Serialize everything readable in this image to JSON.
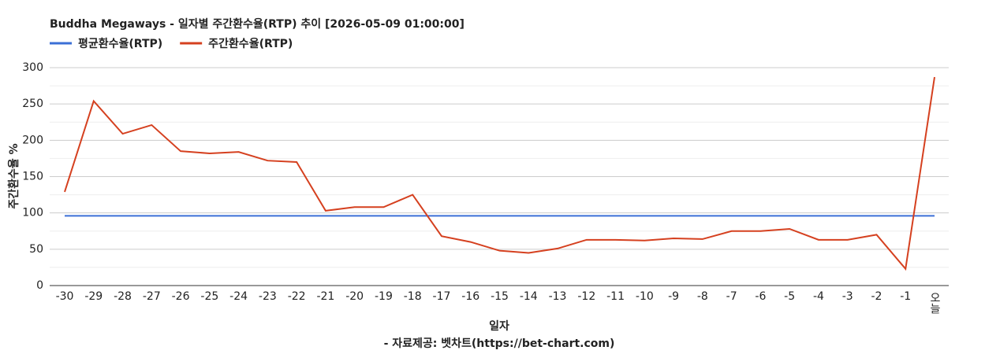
{
  "chart_data": {
    "type": "line",
    "title": "Buddha Megaways - 일자별 주간환수율(RTP) 추이 [2026-05-09 01:00:00]",
    "x_label": "일자",
    "y_label": "주간환수율 %",
    "footer": "- 자료제공: 벳차트(https://bet-chart.com)",
    "categories": [
      "-30",
      "-29",
      "-28",
      "-27",
      "-26",
      "-25",
      "-24",
      "-23",
      "-22",
      "-21",
      "-20",
      "-19",
      "-18",
      "-17",
      "-16",
      "-15",
      "-14",
      "-13",
      "-12",
      "-11",
      "-10",
      "-9",
      "-8",
      "-7",
      "-6",
      "-5",
      "-4",
      "-3",
      "-2",
      "-1",
      "오늘"
    ],
    "series": [
      {
        "name": "평균환수율(RTP)",
        "color": "#3b6fd6",
        "values": [
          96,
          96,
          96,
          96,
          96,
          96,
          96,
          96,
          96,
          96,
          96,
          96,
          96,
          96,
          96,
          96,
          96,
          96,
          96,
          96,
          96,
          96,
          96,
          96,
          96,
          96,
          96,
          96,
          96,
          96,
          96
        ]
      },
      {
        "name": "주간환수율(RTP)",
        "color": "#d5401f",
        "values": [
          129,
          254,
          209,
          221,
          185,
          182,
          184,
          172,
          170,
          103,
          108,
          108,
          125,
          68,
          60,
          48,
          45,
          51,
          63,
          63,
          62,
          65,
          64,
          75,
          75,
          78,
          63,
          63,
          70,
          23,
          287
        ]
      }
    ],
    "ylim": [
      0,
      300
    ],
    "yticks": [
      0,
      50,
      100,
      150,
      200,
      250,
      300
    ],
    "grid": true
  }
}
